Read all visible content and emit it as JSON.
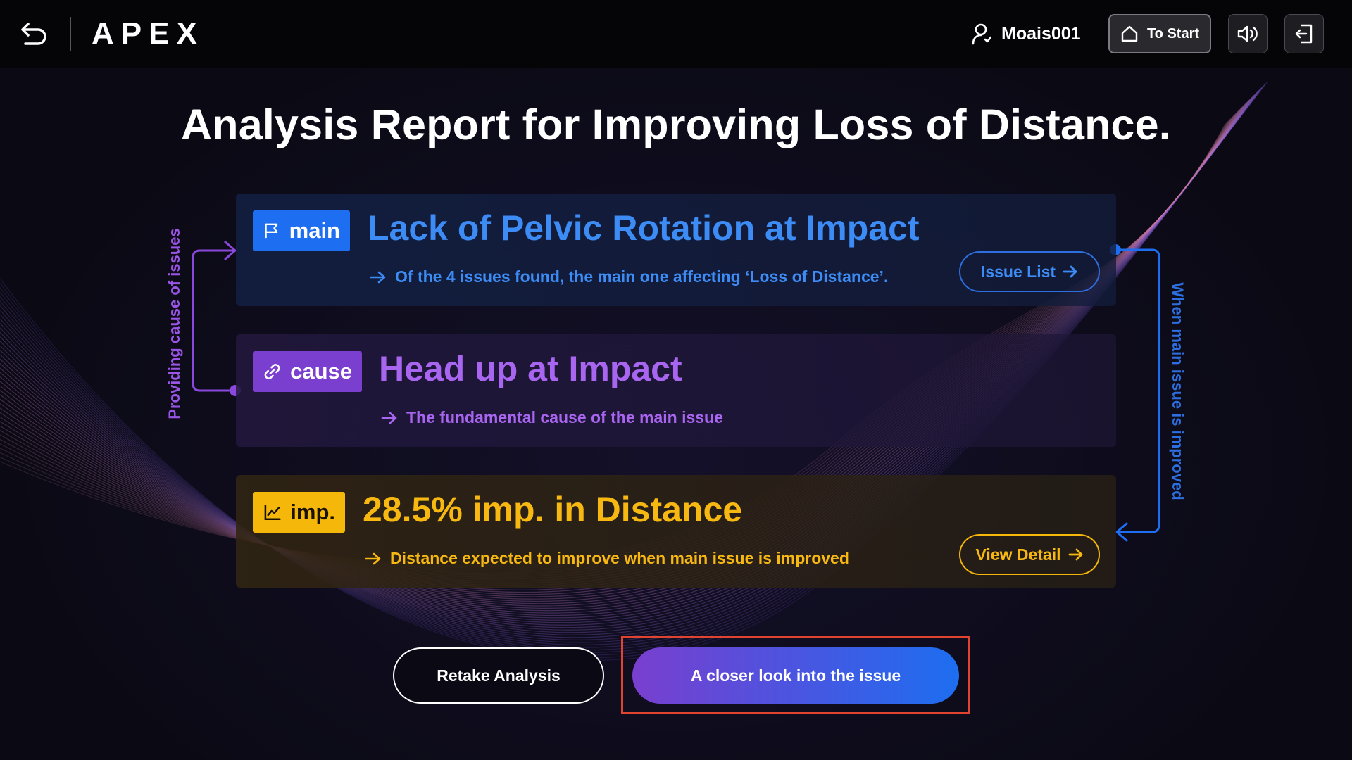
{
  "header": {
    "logo_text": "APEX",
    "username": "Moais001",
    "to_start_label": "To Start",
    "icons": {
      "back": "undo-arrow-icon",
      "user": "user-icon",
      "home": "home-icon",
      "sound": "speaker-icon",
      "exit": "exit-icon"
    }
  },
  "title": "Analysis Report for Improving Loss of Distance.",
  "cards": {
    "main": {
      "tag": "main",
      "tag_icon": "flag-icon",
      "title": "Lack of Pelvic Rotation at Impact",
      "subtitle": "Of the 4 issues found, the main one affecting ‘Loss of Distance’.",
      "button": "Issue List",
      "accent": "#1d6ef0"
    },
    "cause": {
      "tag": "cause",
      "tag_icon": "link-icon",
      "title": "Head up at Impact",
      "subtitle": "The fundamental cause of the main issue",
      "accent": "#7a3fcf"
    },
    "imp": {
      "tag": "imp.",
      "tag_icon": "trend-chart-icon",
      "title": "28.5% imp. in Distance",
      "subtitle": "Distance expected to improve when main issue is improved",
      "button": "View Detail",
      "accent": "#f5b70a"
    }
  },
  "side_labels": {
    "left": "Providing cause of issues",
    "right": "When main issue is improved"
  },
  "actions": {
    "retake": "Retake Analysis",
    "closer_look": "A closer look into the issue",
    "highlight_color": "#e0432f"
  }
}
